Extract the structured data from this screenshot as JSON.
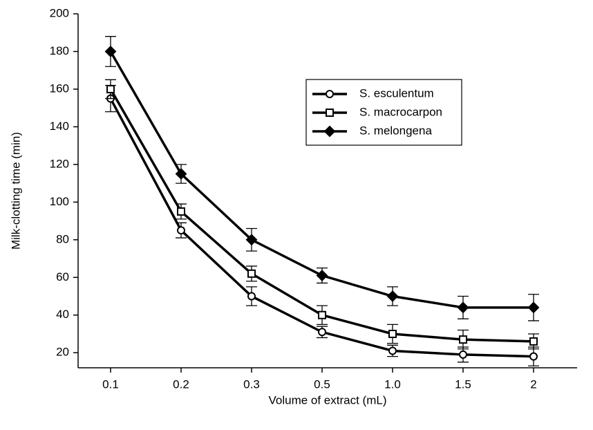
{
  "chart_data": {
    "type": "line",
    "xlabel": "Volume of extract (mL)",
    "ylabel": "Milk-clotting time (min)",
    "categories": [
      "0.1",
      "0.2",
      "0.3",
      "0.5",
      "1.0",
      "1.5",
      "2"
    ],
    "ylim": [
      12,
      200
    ],
    "yticks": [
      20,
      40,
      60,
      80,
      100,
      120,
      140,
      160,
      180,
      200
    ],
    "legend": "upper right",
    "series": [
      {
        "name": "S. esculentum",
        "color": "#000000",
        "marker": "circle",
        "values": [
          155,
          85,
          50,
          31,
          21,
          19,
          18
        ],
        "errors": [
          7,
          4,
          5,
          3,
          3,
          4,
          5
        ]
      },
      {
        "name": "S. macrocarpon",
        "color": "#000000",
        "marker": "square",
        "values": [
          160,
          95,
          62,
          40,
          30,
          27,
          26
        ],
        "errors": [
          5,
          4,
          4,
          5,
          5,
          5,
          4
        ]
      },
      {
        "name": "S. melongena",
        "color": "#000000",
        "marker": "diamond",
        "values": [
          180,
          115,
          80,
          61,
          50,
          44,
          44
        ],
        "errors": [
          8,
          5,
          6,
          4,
          5,
          6,
          7
        ]
      }
    ]
  }
}
